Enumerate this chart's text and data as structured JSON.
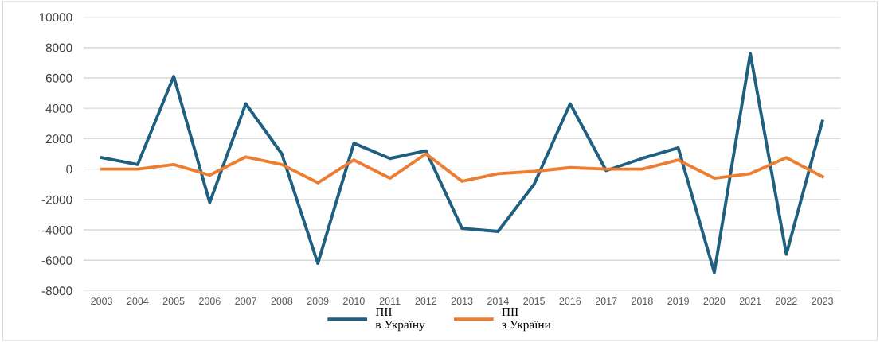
{
  "chart_data": {
    "type": "line",
    "categories": [
      "2003",
      "2004",
      "2005",
      "2006",
      "2007",
      "2008",
      "2009",
      "2010",
      "2011",
      "2012",
      "2013",
      "2014",
      "2015",
      "2016",
      "2017",
      "2018",
      "2019",
      "2020",
      "2021",
      "2022",
      "2023"
    ],
    "series": [
      {
        "name": "ПІІ\nв Україну",
        "color": "#1f6080",
        "values": [
          750,
          300,
          6100,
          -2200,
          4300,
          1000,
          -6200,
          1700,
          700,
          1200,
          -3900,
          -4100,
          -1000,
          4300,
          -100,
          700,
          1400,
          -6800,
          7600,
          -5600,
          3150
        ]
      },
      {
        "name": "ПІІ\nз України",
        "color": "#ed7d31",
        "values": [
          0,
          0,
          300,
          -400,
          800,
          300,
          -900,
          600,
          -600,
          1000,
          -800,
          -300,
          -150,
          100,
          0,
          0,
          600,
          -600,
          -300,
          750,
          -500
        ]
      }
    ],
    "ylim": [
      -8000,
      10000
    ],
    "yticks": [
      -8000,
      -6000,
      -4000,
      -2000,
      0,
      2000,
      4000,
      6000,
      8000,
      10000
    ],
    "grid": "y",
    "legend": "bottom",
    "marker": "none",
    "line_style": "solid"
  }
}
